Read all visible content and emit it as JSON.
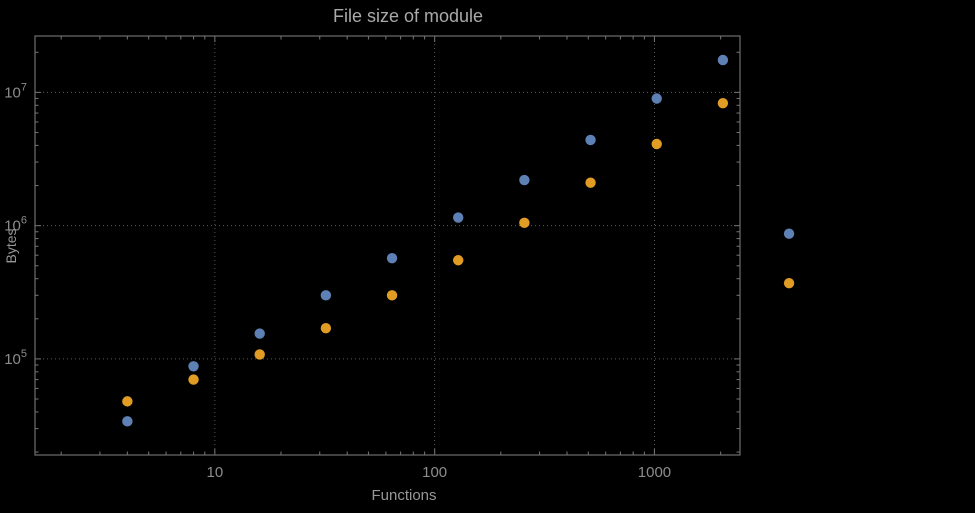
{
  "colors": {
    "background": "#000000",
    "frame": "#6e6e6e",
    "grid": "#585858",
    "tick_text": "#8c8c8c",
    "series_blue": "#5e81b5",
    "series_orange": "#e19c24"
  },
  "chart_data": {
    "type": "scatter",
    "title": "File size of module",
    "xlabel": "Functions",
    "ylabel": "Bytes",
    "x_scale": "log",
    "y_scale": "log",
    "grid": true,
    "legend": "none",
    "x_range": [
      1.52,
      2450
    ],
    "y_range": [
      19000,
      26500000
    ],
    "x": [
      4,
      8,
      16,
      32,
      64,
      128,
      256,
      512,
      1024,
      2048,
      4096
    ],
    "series": [
      {
        "name": "series-blue",
        "color": "#5e81b5",
        "values": [
          34000,
          88000,
          155000,
          300000,
          570000,
          1150000,
          2200000,
          4400000,
          9000000,
          17500000,
          870000
        ]
      },
      {
        "name": "series-orange",
        "color": "#e19c24",
        "values": [
          48000,
          70000,
          108000,
          170000,
          300000,
          550000,
          1050000,
          2100000,
          4100000,
          8300000,
          370000
        ]
      }
    ],
    "x_ticks": [
      {
        "value": 10,
        "label": "10"
      },
      {
        "value": 100,
        "label": "100"
      },
      {
        "value": 1000,
        "label": "1000"
      }
    ],
    "y_ticks": [
      {
        "value": 100000,
        "label": "10^5"
      },
      {
        "value": 1000000,
        "label": "10^6"
      },
      {
        "value": 10000000,
        "label": "10^7"
      }
    ]
  }
}
